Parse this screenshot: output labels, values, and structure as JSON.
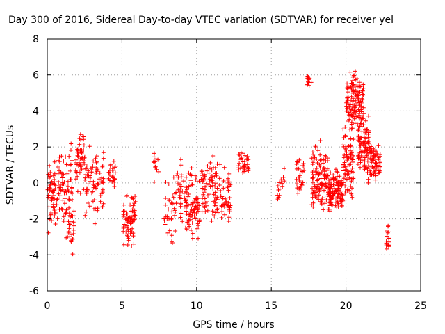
{
  "chart_data": {
    "type": "scatter",
    "title": "Day 300 of 2016, Sidereal Day-to-day VTEC variation (SDTVAR) for receiver yel",
    "xlabel": "GPS time / hours",
    "ylabel": "SDTVAR / TECUs",
    "xlim": [
      0,
      25
    ],
    "ylim": [
      -6,
      8
    ],
    "xticks": [
      0,
      5,
      10,
      15,
      20,
      25
    ],
    "yticks": [
      -6,
      -4,
      -2,
      0,
      2,
      4,
      6,
      8
    ],
    "xtick_labels": [
      "0",
      "5",
      "10",
      "15",
      "20",
      "25"
    ],
    "ytick_labels": [
      "-6",
      "-4",
      "-2",
      "0",
      "2",
      "4",
      "6",
      "8"
    ],
    "grid": true,
    "marker": "+",
    "color": "#ff0000",
    "series": [
      {
        "name": "SDTVAR",
        "segments": [
          {
            "x_start": 0.0,
            "x_end": 0.7,
            "n": 60,
            "y_center": -0.8,
            "y_spread": 1.6
          },
          {
            "x_start": 0.7,
            "x_end": 1.1,
            "n": 30,
            "y_center": 0.0,
            "y_spread": 1.3
          },
          {
            "x_start": 1.1,
            "x_end": 1.7,
            "n": 45,
            "y_center": -0.4,
            "y_spread": 2.5
          },
          {
            "x_start": 1.4,
            "x_end": 1.8,
            "n": 25,
            "y_center": -2.5,
            "y_spread": 1.5
          },
          {
            "x_start": 1.9,
            "x_end": 2.5,
            "n": 50,
            "y_center": 1.5,
            "y_spread": 1.5
          },
          {
            "x_start": 2.5,
            "x_end": 3.8,
            "n": 80,
            "y_center": 0.0,
            "y_spread": 1.6
          },
          {
            "x_start": 4.1,
            "x_end": 4.6,
            "n": 25,
            "y_center": 0.6,
            "y_spread": 0.6
          },
          {
            "x_start": 5.0,
            "x_end": 5.9,
            "n": 70,
            "y_center": -2.0,
            "y_spread": 1.2
          },
          {
            "x_start": 7.1,
            "x_end": 7.5,
            "n": 12,
            "y_center": 1.0,
            "y_spread": 0.8
          },
          {
            "x_start": 7.8,
            "x_end": 8.6,
            "n": 35,
            "y_center": -1.6,
            "y_spread": 1.5
          },
          {
            "x_start": 8.6,
            "x_end": 9.2,
            "n": 30,
            "y_center": -0.5,
            "y_spread": 1.4
          },
          {
            "x_start": 9.2,
            "x_end": 10.2,
            "n": 90,
            "y_center": -1.3,
            "y_spread": 1.5
          },
          {
            "x_start": 10.3,
            "x_end": 11.3,
            "n": 70,
            "y_center": -0.5,
            "y_spread": 1.6
          },
          {
            "x_start": 11.3,
            "x_end": 12.3,
            "n": 55,
            "y_center": -0.8,
            "y_spread": 1.5
          },
          {
            "x_start": 12.8,
            "x_end": 13.5,
            "n": 35,
            "y_center": 1.0,
            "y_spread": 0.6
          },
          {
            "x_start": 15.4,
            "x_end": 15.9,
            "n": 15,
            "y_center": -0.2,
            "y_spread": 0.9
          },
          {
            "x_start": 16.6,
            "x_end": 17.2,
            "n": 30,
            "y_center": 0.4,
            "y_spread": 1.0
          },
          {
            "x_start": 17.4,
            "x_end": 17.7,
            "n": 12,
            "y_center": 5.7,
            "y_spread": 0.4
          },
          {
            "x_start": 17.7,
            "x_end": 18.8,
            "n": 120,
            "y_center": 0.2,
            "y_spread": 1.5
          },
          {
            "x_start": 18.8,
            "x_end": 19.8,
            "n": 130,
            "y_center": -0.5,
            "y_spread": 0.9
          },
          {
            "x_start": 19.8,
            "x_end": 20.5,
            "n": 90,
            "y_center": 1.5,
            "y_spread": 2.2
          },
          {
            "x_start": 20.0,
            "x_end": 21.2,
            "n": 140,
            "y_center": 4.5,
            "y_spread": 1.4
          },
          {
            "x_start": 20.8,
            "x_end": 21.6,
            "n": 90,
            "y_center": 2.0,
            "y_spread": 1.4
          },
          {
            "x_start": 21.6,
            "x_end": 22.3,
            "n": 70,
            "y_center": 1.2,
            "y_spread": 1.0
          },
          {
            "x_start": 22.7,
            "x_end": 22.9,
            "n": 18,
            "y_center": -3.0,
            "y_spread": 0.7
          }
        ]
      }
    ]
  }
}
